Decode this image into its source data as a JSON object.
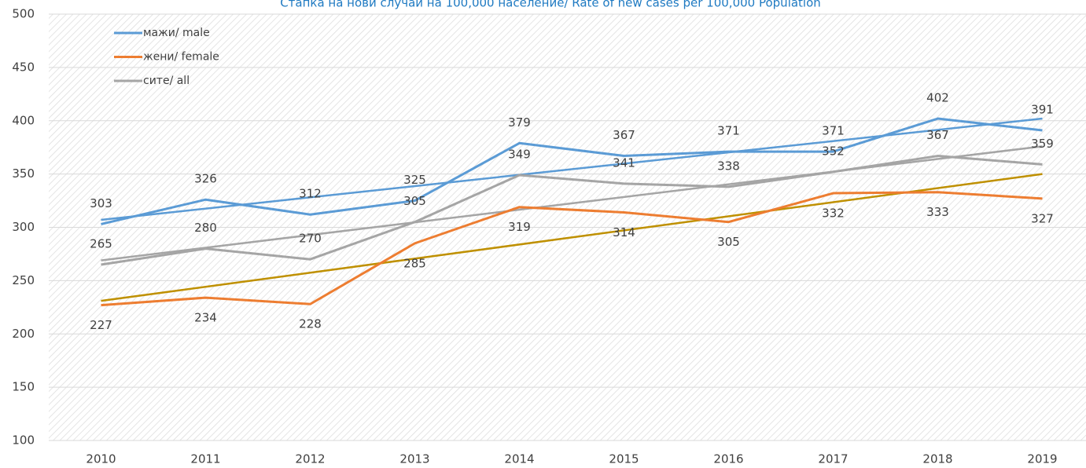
{
  "chart_data": {
    "type": "line",
    "title": "Стапка на нови случаи на 100,000 население/ Rate of new cases per 100,000 Population",
    "categories": [
      "2010",
      "2011",
      "2012",
      "2013",
      "2014",
      "2015",
      "2016",
      "2017",
      "2018",
      "2019"
    ],
    "series": [
      {
        "name": "мажи/ male",
        "color": "#5b9bd5",
        "values": [
          303,
          326,
          312,
          325,
          379,
          367,
          371,
          371,
          402,
          391
        ]
      },
      {
        "name": "жени/ female",
        "color": "#ed7d31",
        "values": [
          227,
          234,
          228,
          285,
          319,
          314,
          305,
          332,
          333,
          327
        ]
      },
      {
        "name": "сите/ all",
        "color": "#a5a5a5",
        "values": [
          265,
          280,
          270,
          305,
          349,
          341,
          338,
          352,
          367,
          359
        ]
      }
    ],
    "trendlines": [
      {
        "color": "#5b9bd5",
        "values": [
          307,
          402
        ]
      },
      {
        "color": "#bf9000",
        "values": [
          231,
          350
        ]
      },
      {
        "color": "#a5a5a5",
        "values": [
          269,
          376
        ]
      }
    ],
    "ylim": [
      100,
      500
    ],
    "yticks": [
      100,
      150,
      200,
      250,
      300,
      350,
      400,
      450,
      500
    ],
    "grid": true,
    "legend": "upper left"
  }
}
